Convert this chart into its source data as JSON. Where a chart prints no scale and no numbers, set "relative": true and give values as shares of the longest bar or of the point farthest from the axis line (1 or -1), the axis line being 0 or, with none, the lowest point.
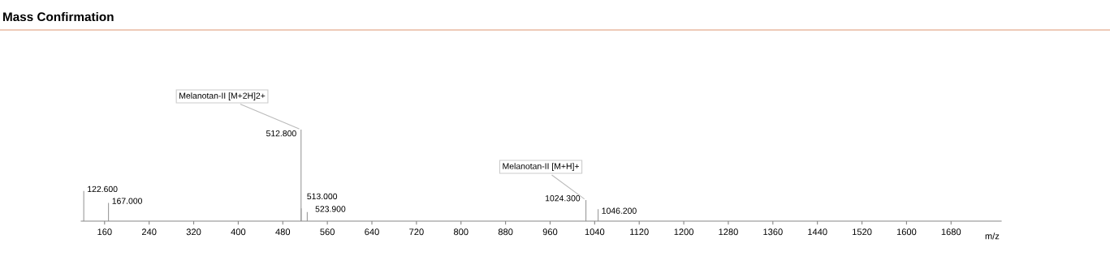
{
  "chart_data": {
    "type": "bar",
    "title": "Mass Confirmation",
    "xlabel": "m/z",
    "relative": true,
    "x": [
      122.6,
      167.0,
      512.8,
      513.0,
      523.9,
      1024.3,
      1046.2
    ],
    "values": [
      0.33,
      0.2,
      1,
      0.14,
      0.1,
      0.23,
      0.13
    ],
    "color": "#9a9a9a",
    "xlim": [
      118,
      1770
    ],
    "xticks": [
      160,
      240,
      320,
      400,
      480,
      560,
      640,
      720,
      800,
      880,
      960,
      1040,
      1120,
      1200,
      1280,
      1360,
      1440,
      1520,
      1600,
      1680
    ],
    "grid": false,
    "annotations": [
      {
        "text": "122.600",
        "x": 122.6,
        "y": 0.33
      },
      {
        "text": "167.000",
        "x": 167.0,
        "y": 0.2
      },
      {
        "text": "512.800",
        "x": 512.8,
        "y": 1
      },
      {
        "text": "513.000",
        "x": 513.0,
        "y": 0.14
      },
      {
        "text": "523.900",
        "x": 523.9,
        "y": 0.1
      },
      {
        "text": "1024.300",
        "x": 1024.3,
        "y": 0.23
      },
      {
        "text": "1046.200",
        "x": 1046.2,
        "y": 0.13
      },
      {
        "text": "Melanotan-II [M+2H]2+",
        "x": 512.8,
        "y": 1
      },
      {
        "text": "Melanotan-II [M+H]+",
        "x": 1024.3,
        "y": 0.23
      }
    ]
  }
}
